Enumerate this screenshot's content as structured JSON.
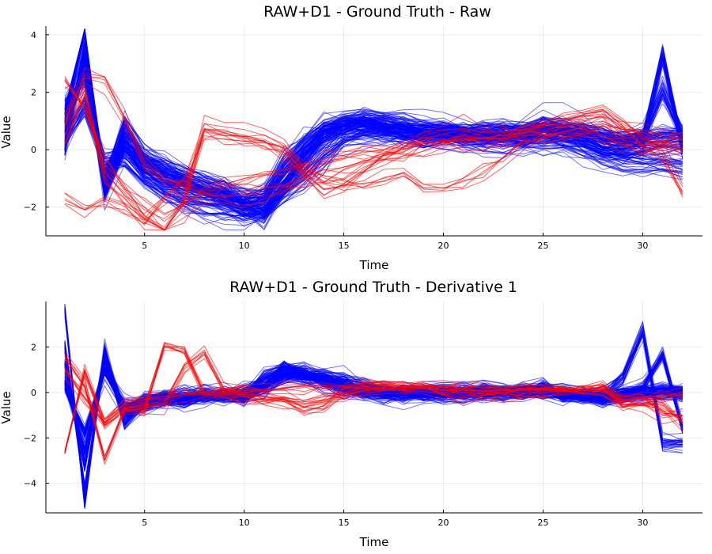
{
  "chart_data": [
    {
      "type": "line",
      "title": "RAW+D1 - Ground Truth - Raw",
      "xlabel": "Time",
      "ylabel": "Value",
      "xlim": [
        0.05,
        33
      ],
      "ylim": [
        -3.0,
        4.3
      ],
      "xticks": [
        5,
        10,
        15,
        20,
        25,
        30
      ],
      "yticks": [
        -2,
        0,
        2,
        4
      ],
      "x": [
        1,
        2,
        3,
        4,
        5,
        6,
        7,
        8,
        9,
        10,
        11,
        12,
        13,
        14,
        15,
        16,
        17,
        18,
        19,
        20,
        21,
        22,
        23,
        24,
        25,
        26,
        27,
        28,
        29,
        30,
        31,
        32
      ],
      "grid": true,
      "legend": "none",
      "series_groups": [
        {
          "color": "#0000ff",
          "opacity": 0.55,
          "count": 150,
          "representative": [
            {
              "values": [
                0.8,
                2.9,
                -1.4,
                0.4,
                -0.5,
                -0.9,
                -1.2,
                -1.4,
                -1.6,
                -1.9,
                -1.8,
                -0.9,
                0.0,
                0.6,
                0.8,
                0.9,
                0.8,
                0.7,
                0.65,
                0.6,
                0.55,
                0.5,
                0.5,
                0.5,
                0.7,
                0.6,
                0.5,
                0.2,
                0.1,
                0.1,
                0.2,
                0.3
              ]
            },
            {
              "values": [
                1.2,
                4.1,
                -1.2,
                0.9,
                -0.2,
                -0.6,
                -1.0,
                -1.3,
                -1.5,
                -2.0,
                -2.3,
                -1.3,
                -0.4,
                0.5,
                0.9,
                1.0,
                0.8,
                0.7,
                0.6,
                0.6,
                0.5,
                0.5,
                0.6,
                0.6,
                0.9,
                0.8,
                0.7,
                0.5,
                0.3,
                0.5,
                2.1,
                0.5
              ]
            },
            {
              "values": [
                0.4,
                1.5,
                -0.4,
                -0.3,
                -1.0,
                -1.5,
                -1.8,
                -2.0,
                -2.1,
                -2.3,
                -2.1,
                -1.5,
                -0.9,
                -0.2,
                0.4,
                0.6,
                0.6,
                0.6,
                0.5,
                0.5,
                0.5,
                0.4,
                0.4,
                0.4,
                0.4,
                0.3,
                0.1,
                -0.2,
                -0.4,
                -0.5,
                -0.5,
                -0.6
              ]
            },
            {
              "values": [
                1.6,
                2.4,
                -0.8,
                0.2,
                -0.7,
                -1.1,
                -1.3,
                -1.5,
                -1.7,
                -1.9,
                -1.6,
                -0.4,
                0.3,
                0.8,
                1.0,
                1.0,
                0.9,
                0.8,
                0.7,
                0.7,
                0.6,
                0.6,
                0.6,
                0.6,
                0.8,
                0.7,
                0.6,
                0.4,
                0.3,
                0.4,
                0.6,
                0.6
              ]
            },
            {
              "values": [
                0.0,
                3.5,
                -1.5,
                0.1,
                -0.4,
                -0.8,
                -1.1,
                -1.3,
                -1.5,
                -1.8,
                -1.9,
                -1.1,
                -0.2,
                0.5,
                0.8,
                0.9,
                0.8,
                0.7,
                0.6,
                0.6,
                0.5,
                0.5,
                0.5,
                0.5,
                0.6,
                0.5,
                0.4,
                0.1,
                0.0,
                0.3,
                3.3,
                0.1
              ]
            }
          ]
        },
        {
          "color": "#ff0000",
          "opacity": 0.6,
          "count": 25,
          "representative": [
            {
              "values": [
                0.5,
                2.2,
                -0.8,
                -1.5,
                -2.3,
                -2.7,
                -1.6,
                0.9,
                0.8,
                0.7,
                0.5,
                0.2,
                -0.6,
                -1.2,
                -1.0,
                -0.5,
                0.0,
                0.3,
                0.6,
                0.7,
                0.7,
                0.6,
                0.6,
                0.8,
                1.0,
                1.2,
                1.3,
                1.5,
                1.0,
                0.5,
                0.0,
                -1.3
              ]
            },
            {
              "values": [
                -1.7,
                -2.1,
                -1.7,
                -1.9,
                -2.4,
                -1.6,
                -1.0,
                0.7,
                0.6,
                0.4,
                0.3,
                -0.1,
                -0.6,
                -0.9,
                -1.1,
                -1.2,
                -1.0,
                -0.8,
                -1.2,
                -1.2,
                -1.0,
                -0.6,
                -0.3,
                0.3,
                0.5,
                0.6,
                0.8,
                0.5,
                0.2,
                0.0,
                0.2,
                0.0
              ]
            },
            {
              "values": [
                1.0,
                2.5,
                2.3,
                1.0,
                -0.5,
                -1.0,
                -1.3,
                -1.5,
                -1.6,
                -1.6,
                -1.5,
                -1.3,
                -1.1,
                -0.8,
                -0.6,
                -0.4,
                -0.2,
                0.0,
                0.2,
                0.3,
                0.4,
                0.4,
                0.5,
                0.6,
                0.7,
                0.8,
                0.9,
                1.0,
                0.6,
                0.4,
                0.3,
                0.2
              ]
            },
            {
              "values": [
                2.4,
                1.4,
                -0.5,
                -1.3,
                -2.0,
                -2.5,
                -1.9,
                -1.4,
                -1.2,
                -1.0,
                -0.9,
                -0.7,
                -0.5,
                -0.3,
                -0.2,
                -0.1,
                0.0,
                0.1,
                0.2,
                0.3,
                0.3,
                0.4,
                0.4,
                0.5,
                0.5,
                0.6,
                0.8,
                0.9,
                0.7,
                0.6,
                0.5,
                0.4
              ]
            }
          ]
        }
      ]
    },
    {
      "type": "line",
      "title": "RAW+D1 - Ground Truth - Derivative 1",
      "xlabel": "Time",
      "ylabel": "Value",
      "xlim": [
        0.05,
        33
      ],
      "ylim": [
        -5.3,
        4.0
      ],
      "xticks": [
        5,
        10,
        15,
        20,
        25,
        30
      ],
      "yticks": [
        -4,
        -2,
        0,
        2
      ],
      "x": [
        1,
        2,
        3,
        4,
        5,
        6,
        7,
        8,
        9,
        10,
        11,
        12,
        13,
        14,
        15,
        16,
        17,
        18,
        19,
        20,
        21,
        22,
        23,
        24,
        25,
        26,
        27,
        28,
        29,
        30,
        31,
        32
      ],
      "grid": true,
      "legend": "none",
      "series_groups": [
        {
          "color": "#0000ff",
          "opacity": 0.55,
          "count": 150,
          "representative": [
            {
              "values": [
                2.1,
                -4.3,
                1.6,
                -1.0,
                -0.4,
                -0.3,
                -0.2,
                -0.2,
                -0.2,
                -0.1,
                0.3,
                0.9,
                0.9,
                0.6,
                0.3,
                0.1,
                0.0,
                0.0,
                0.0,
                0.0,
                0.0,
                0.0,
                0.0,
                0.0,
                0.2,
                -0.1,
                -0.1,
                -0.3,
                -0.1,
                0.0,
                0.1,
                0.1
              ]
            },
            {
              "values": [
                3.7,
                -4.9,
                1.9,
                -1.4,
                -0.4,
                -0.3,
                -0.4,
                -0.2,
                -0.2,
                -0.3,
                0.7,
                1.0,
                0.9,
                0.4,
                0.1,
                0.0,
                -0.1,
                0.0,
                0.0,
                0.0,
                0.0,
                0.1,
                0.0,
                0.0,
                0.3,
                -0.2,
                -0.1,
                -0.2,
                0.0,
                0.2,
                1.6,
                -1.6
              ]
            },
            {
              "values": [
                0.5,
                -2.5,
                1.0,
                -0.6,
                -0.6,
                -0.4,
                -0.3,
                -0.2,
                -0.1,
                -0.2,
                0.2,
                0.6,
                0.7,
                0.7,
                0.6,
                0.2,
                0.0,
                0.0,
                -0.1,
                0.0,
                -0.1,
                0.0,
                0.0,
                0.0,
                0.0,
                -0.1,
                -0.2,
                -0.2,
                -0.1,
                -0.1,
                0.0,
                -0.1
              ]
            },
            {
              "values": [
                1.2,
                -3.2,
                1.5,
                -0.9,
                -0.5,
                -0.2,
                -0.3,
                -0.2,
                -0.2,
                -0.2,
                0.2,
                1.2,
                0.7,
                0.5,
                0.2,
                0.0,
                0.0,
                -0.1,
                0.0,
                0.0,
                0.0,
                0.0,
                0.0,
                0.0,
                0.2,
                -0.1,
                -0.1,
                -0.2,
                -0.1,
                0.1,
                0.2,
                0.0
              ]
            },
            {
              "values": [
                0.2,
                -1.8,
                0.9,
                -0.7,
                -0.3,
                -0.2,
                -0.2,
                -0.1,
                -0.1,
                0.0,
                0.3,
                0.8,
                0.8,
                0.6,
                0.3,
                0.1,
                0.0,
                0.0,
                0.0,
                0.0,
                0.0,
                0.0,
                0.0,
                0.0,
                0.1,
                0.0,
                -0.1,
                -0.1,
                0.6,
                2.7,
                -2.2,
                -2.2
              ]
            }
          ]
        },
        {
          "color": "#ff0000",
          "opacity": 0.6,
          "count": 25,
          "representative": [
            {
              "values": [
                -2.7,
                0.9,
                -1.4,
                -0.7,
                -0.8,
                2.0,
                1.8,
                -0.1,
                -0.1,
                -0.2,
                -0.3,
                -0.4,
                -0.8,
                -0.6,
                0.2,
                0.4,
                0.5,
                0.3,
                0.3,
                0.1,
                0.0,
                -0.1,
                0.0,
                0.2,
                0.2,
                0.2,
                0.1,
                0.2,
                -0.5,
                -0.5,
                -0.5,
                -1.3
              ]
            },
            {
              "values": [
                1.5,
                0.3,
                -3.0,
                -0.8,
                -0.7,
                -0.5,
                1.1,
                1.7,
                0.0,
                -0.1,
                -0.2,
                -0.3,
                -0.5,
                -0.3,
                -0.2,
                0.1,
                0.2,
                0.2,
                0.2,
                0.1,
                0.1,
                0.1,
                0.1,
                0.1,
                0.1,
                0.1,
                0.1,
                0.1,
                -0.3,
                -0.2,
                -1.0,
                -1.0
              ]
            },
            {
              "values": [
                1.0,
                -0.2,
                -1.3,
                -0.5,
                -0.3,
                -0.2,
                -0.1,
                0.0,
                0.0,
                0.1,
                0.1,
                0.2,
                0.3,
                0.3,
                0.2,
                0.2,
                0.2,
                0.2,
                0.2,
                0.1,
                0.1,
                0.1,
                0.1,
                0.1,
                0.1,
                0.1,
                0.1,
                0.1,
                -0.4,
                -0.2,
                -0.1,
                -0.1
              ]
            }
          ]
        }
      ]
    }
  ]
}
